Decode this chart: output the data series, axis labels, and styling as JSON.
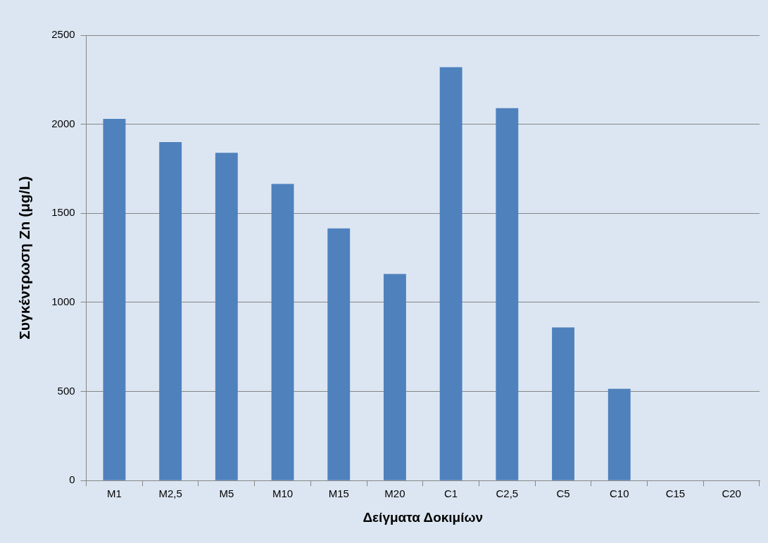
{
  "chart_data": {
    "type": "bar",
    "xlabel": "Δείγματα Δοκιμίων",
    "ylabel": "Συγκέντρωση Zn (μg/L)",
    "categories": [
      "M1",
      "M2,5",
      "M5",
      "M10",
      "M15",
      "M20",
      "C1",
      "C2,5",
      "C5",
      "C10",
      "C15",
      "C20"
    ],
    "values": [
      2030,
      1900,
      1840,
      1665,
      1415,
      1160,
      2320,
      2090,
      860,
      515,
      0,
      0
    ],
    "color": "#4f81bd",
    "ylim": [
      0,
      2500
    ],
    "yticks": [
      0,
      500,
      1000,
      1500,
      2000,
      2500
    ],
    "grid": "y",
    "legend": false
  }
}
